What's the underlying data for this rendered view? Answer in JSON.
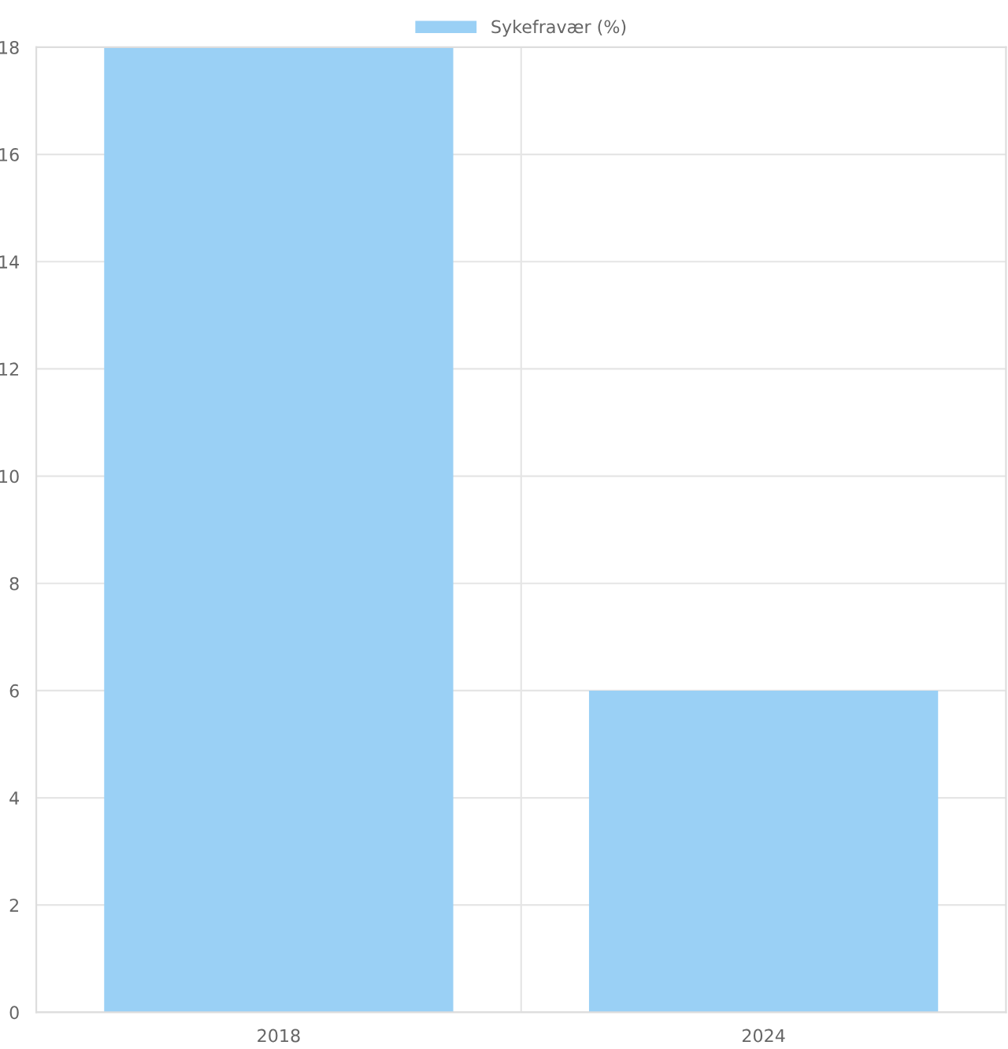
{
  "chart_data": {
    "type": "bar",
    "categories": [
      "2018",
      "2024"
    ],
    "series": [
      {
        "name": "Sykefravær (%)",
        "color": "#9ad0f5",
        "values": [
          18,
          6
        ]
      }
    ],
    "ylim": [
      0,
      18
    ],
    "yticks": [
      0,
      2,
      4,
      6,
      8,
      10,
      12,
      14,
      16,
      18
    ],
    "grid": true,
    "legend": "top"
  }
}
